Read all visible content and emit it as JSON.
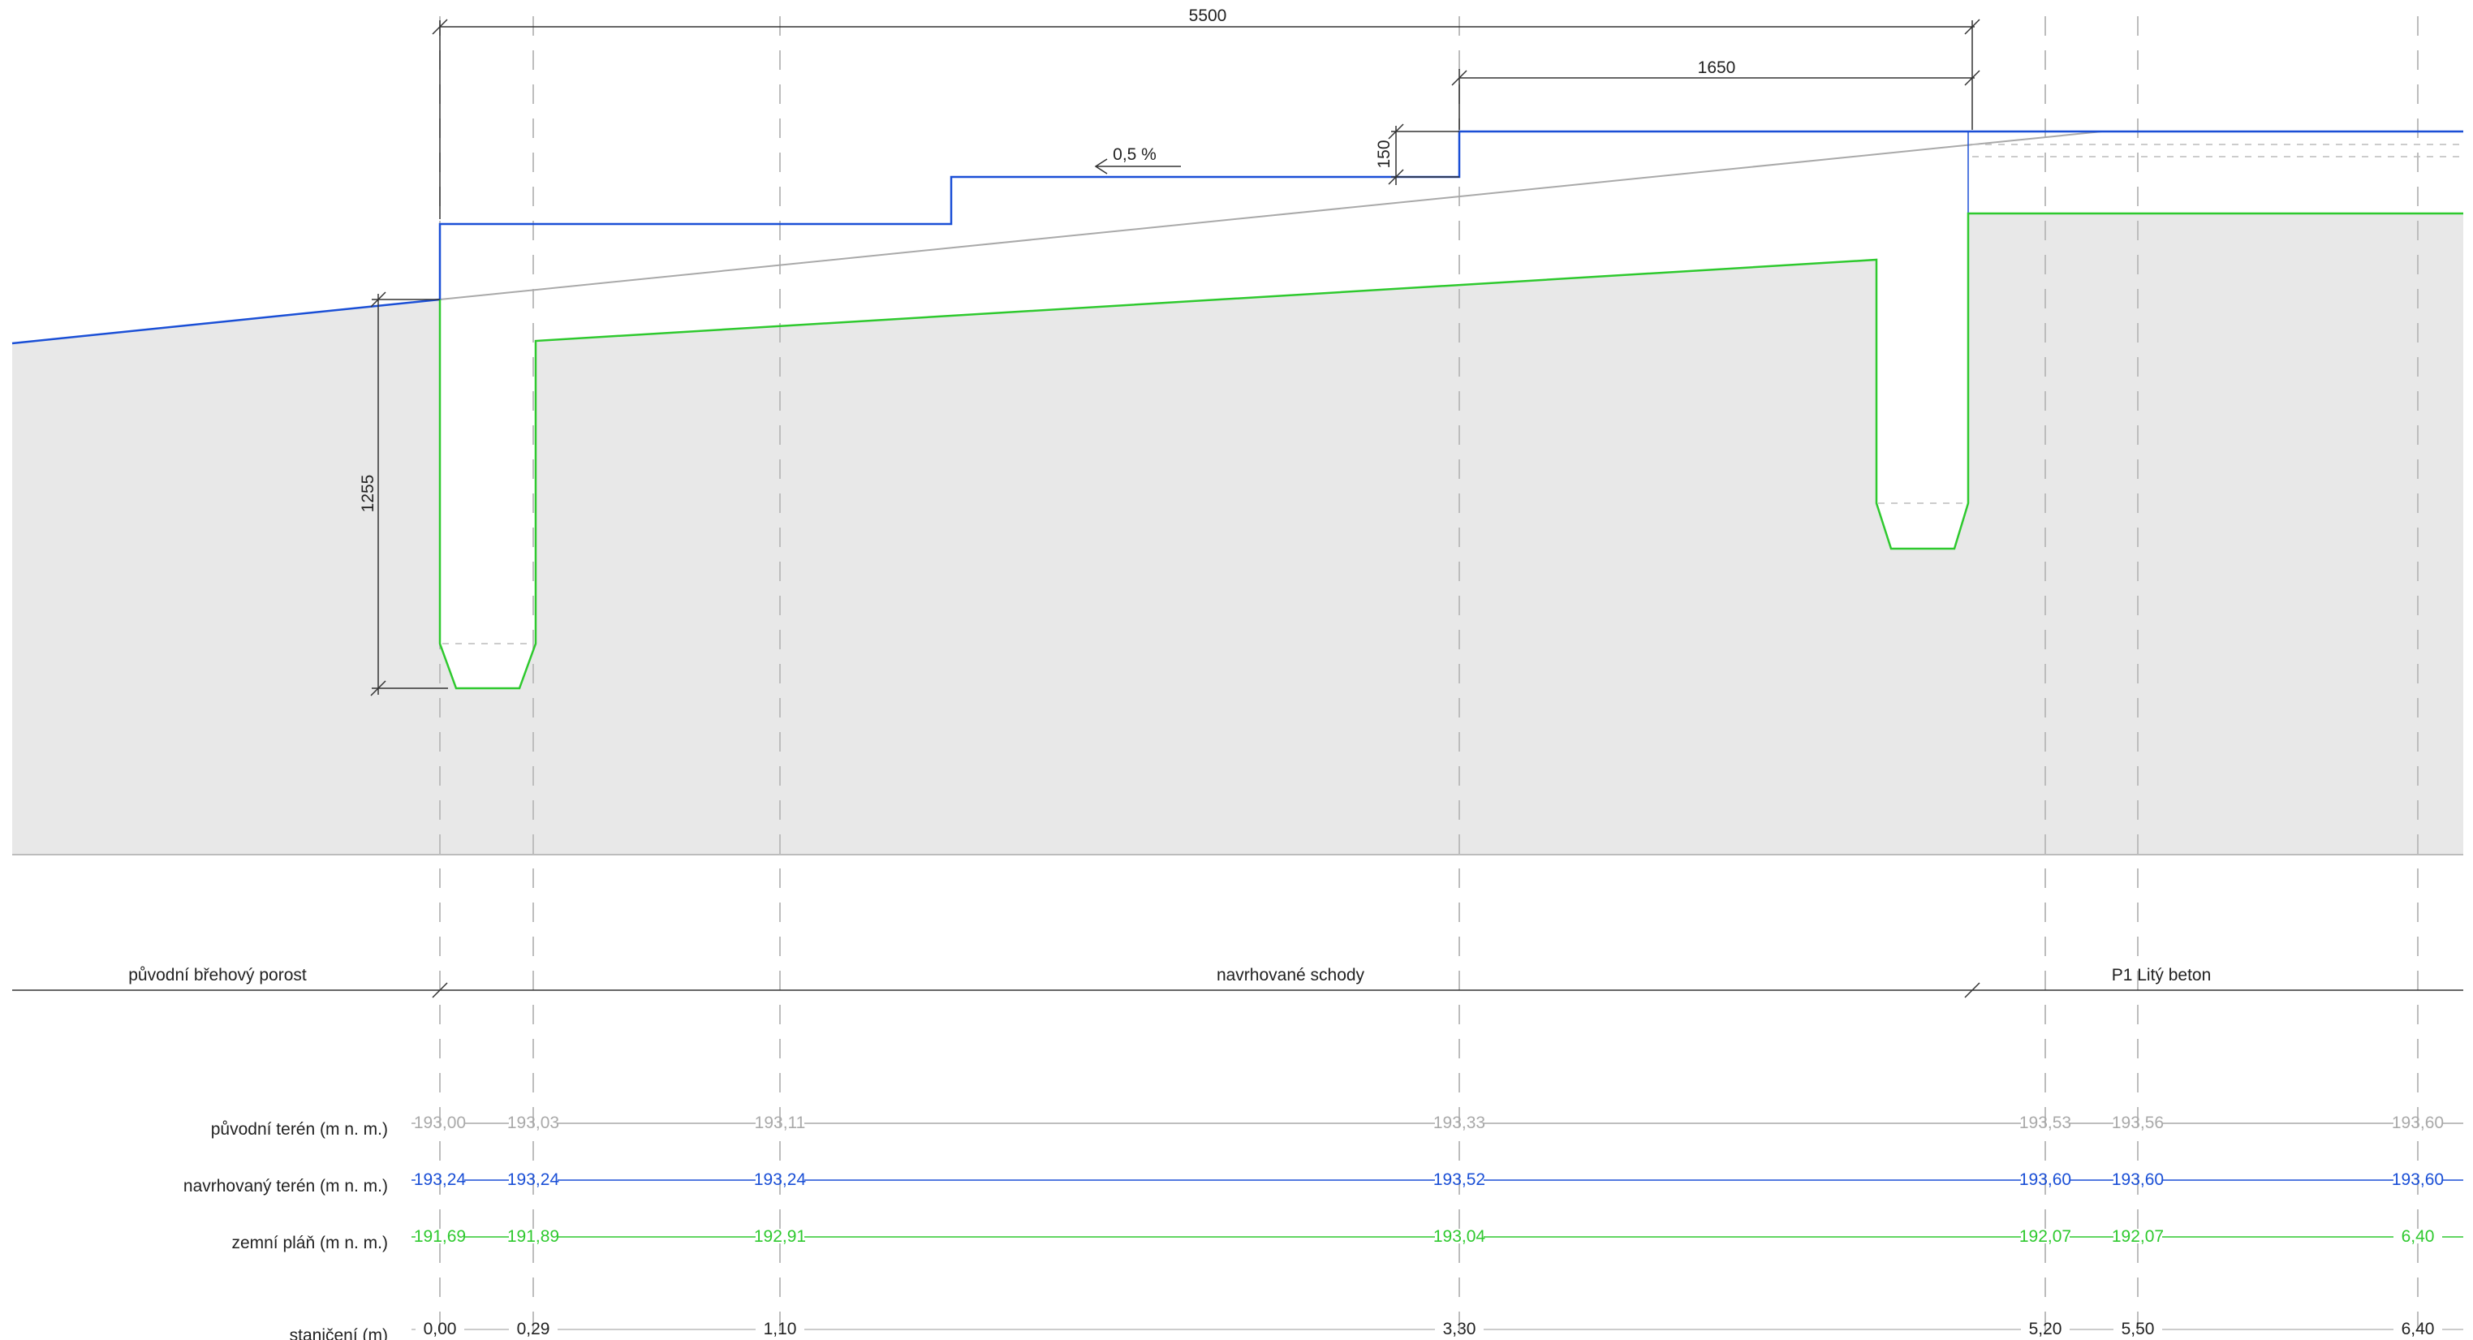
{
  "colors": {
    "original": "#a9a9a9",
    "proposed": "#1a4fd6",
    "subgrade": "#2ec92e",
    "soil": "#e8e8e8",
    "ink": "#222222"
  },
  "dimensions": {
    "total_width": "5500",
    "upper_step": "1650",
    "step_height": "150",
    "trench_depth": "1255",
    "slope": "0,5 %"
  },
  "zones": {
    "left": "původní břehový porost",
    "middle": "navrhované schody",
    "right": "P1 Litý beton"
  },
  "rows": {
    "original_label": "původní terén (m n. m.)",
    "proposed_label": "navrhovaný terén (m n. m.)",
    "subgrade_label": "zemní pláň (m n. m.)",
    "station_label": "staničení (m)"
  },
  "chart_data": {
    "type": "table",
    "stations": [
      "0,00",
      "0,29",
      "1,10",
      "3,30",
      "5,20",
      "5,50",
      "6,40"
    ],
    "original_terrain": [
      "193,00",
      "193,03",
      "193,11",
      "193,33",
      "193,53",
      "193,56",
      "193,60"
    ],
    "proposed_terrain": [
      "193,24",
      "193,24",
      "193,24",
      "193,52",
      "193,60",
      "193,60",
      "193,60"
    ],
    "subgrade": [
      "191,69",
      "191,89",
      "192,91",
      "193,04",
      "192,07",
      "192,07",
      "6,40"
    ]
  }
}
